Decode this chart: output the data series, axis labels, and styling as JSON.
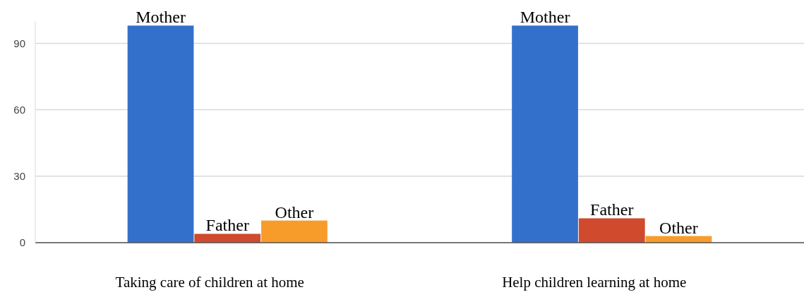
{
  "chart_data": {
    "type": "bar",
    "categories": [
      "Taking care of children at home",
      "Help children learning at home"
    ],
    "series": [
      {
        "name": "Mother",
        "color": "#3370cc",
        "values": [
          98,
          98
        ]
      },
      {
        "name": "Father",
        "color": "#d04a2d",
        "values": [
          4,
          11
        ]
      },
      {
        "name": "Other",
        "color": "#f79c2b",
        "values": [
          10,
          3
        ]
      }
    ],
    "ylim": [
      0,
      100
    ],
    "yticks": [
      0,
      30,
      60,
      90
    ],
    "grid": "y"
  }
}
